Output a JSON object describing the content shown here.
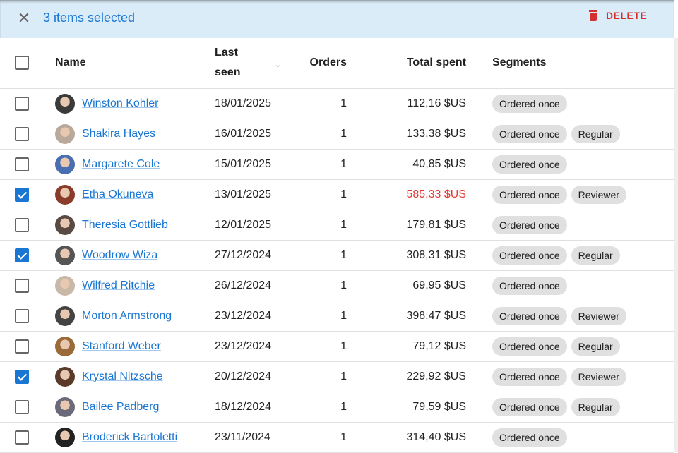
{
  "bulk_bar": {
    "selected_label": "3 items selected",
    "delete_label": "DELETE"
  },
  "headers": {
    "name": "Name",
    "last_seen_1": "Last",
    "last_seen_2": "seen",
    "orders": "Orders",
    "total": "Total spent",
    "segments": "Segments",
    "sort_arrow": "↓"
  },
  "rows": [
    {
      "name": "Winston Kohler",
      "date": "18/01/2025",
      "orders": "1",
      "total": "112,16 $US",
      "segments": [
        "Ordered once"
      ],
      "checked": false,
      "avatar": "#3a3a3a"
    },
    {
      "name": "Shakira Hayes",
      "date": "16/01/2025",
      "orders": "1",
      "total": "133,38 $US",
      "segments": [
        "Ordered once",
        "Regular"
      ],
      "checked": false,
      "avatar": "#b8a99a"
    },
    {
      "name": "Margarete Cole",
      "date": "15/01/2025",
      "orders": "1",
      "total": "40,85 $US",
      "segments": [
        "Ordered once"
      ],
      "checked": false,
      "avatar": "#4a6fb0"
    },
    {
      "name": "Etha Okuneva",
      "date": "13/01/2025",
      "orders": "1",
      "total": "585,33 $US",
      "segments": [
        "Ordered once",
        "Reviewer"
      ],
      "checked": true,
      "avatar": "#8a3b2a",
      "total_highlight": true
    },
    {
      "name": "Theresia Gottlieb",
      "date": "12/01/2025",
      "orders": "1",
      "total": "179,81 $US",
      "segments": [
        "Ordered once"
      ],
      "checked": false,
      "avatar": "#5a4a44"
    },
    {
      "name": "Woodrow Wiza",
      "date": "27/12/2024",
      "orders": "1",
      "total": "308,31 $US",
      "segments": [
        "Ordered once",
        "Regular"
      ],
      "checked": true,
      "avatar": "#555"
    },
    {
      "name": "Wilfred Ritchie",
      "date": "26/12/2024",
      "orders": "1",
      "total": "69,95 $US",
      "segments": [
        "Ordered once"
      ],
      "checked": false,
      "avatar": "#c8b8a8"
    },
    {
      "name": "Morton Armstrong",
      "date": "23/12/2024",
      "orders": "1",
      "total": "398,47 $US",
      "segments": [
        "Ordered once",
        "Reviewer"
      ],
      "checked": false,
      "avatar": "#444"
    },
    {
      "name": "Stanford Weber",
      "date": "23/12/2024",
      "orders": "1",
      "total": "79,12 $US",
      "segments": [
        "Ordered once",
        "Regular"
      ],
      "checked": false,
      "avatar": "#9a6a3a"
    },
    {
      "name": "Krystal Nitzsche",
      "date": "20/12/2024",
      "orders": "1",
      "total": "229,92 $US",
      "segments": [
        "Ordered once",
        "Reviewer"
      ],
      "checked": true,
      "avatar": "#5a3a2a"
    },
    {
      "name": "Bailee Padberg",
      "date": "18/12/2024",
      "orders": "1",
      "total": "79,59 $US",
      "segments": [
        "Ordered once",
        "Regular"
      ],
      "checked": false,
      "avatar": "#6a6a7a"
    },
    {
      "name": "Broderick Bartoletti",
      "date": "23/11/2024",
      "orders": "1",
      "total": "314,40 $US",
      "segments": [
        "Ordered once"
      ],
      "checked": false,
      "avatar": "#222"
    }
  ],
  "colors": {
    "accent": "#1976d2",
    "danger": "#d32f2f",
    "bar_bg": "#dbecf9",
    "highlight_total": "#e53935"
  }
}
